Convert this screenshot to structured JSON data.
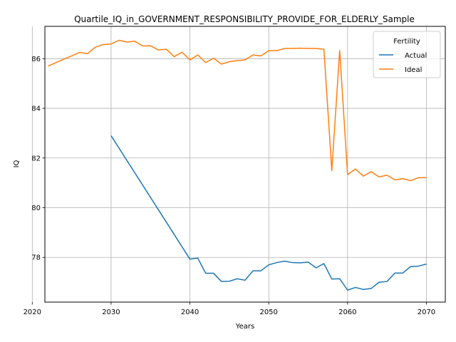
{
  "chart_data": {
    "type": "line",
    "title": "Quartile_IQ_in_GOVERNMENT_RESPONSIBILITY_PROVIDE_FOR_ELDERLY_Sample",
    "xlabel": "Years",
    "ylabel": "IQ",
    "xlim": [
      2021.6,
      2072.4
    ],
    "ylim": [
      76.2,
      87.3
    ],
    "xticks": [
      2020,
      2030,
      2040,
      2050,
      2060,
      2070
    ],
    "yticks": [
      78,
      80,
      82,
      84,
      86
    ],
    "grid": true,
    "legend": {
      "title": "Fertility",
      "placement": "top-right"
    },
    "series": [
      {
        "name": "Actual",
        "color": "#1f77b4",
        "x": [
          2030,
          2040,
          2041,
          2042,
          2043,
          2044,
          2045,
          2046,
          2047,
          2048,
          2049,
          2050,
          2051,
          2052,
          2053,
          2054,
          2055,
          2056,
          2057,
          2058,
          2059,
          2060,
          2061,
          2062,
          2063,
          2064,
          2065,
          2066,
          2067,
          2068,
          2069,
          2070
        ],
        "y": [
          82.9,
          77.93,
          77.97,
          77.36,
          77.36,
          77.03,
          77.04,
          77.14,
          77.08,
          77.46,
          77.46,
          77.7,
          77.79,
          77.85,
          77.79,
          77.78,
          77.81,
          77.58,
          77.75,
          77.13,
          77.14,
          76.68,
          76.79,
          76.71,
          76.75,
          77.0,
          77.03,
          77.37,
          77.37,
          77.63,
          77.65,
          77.73
        ]
      },
      {
        "name": "Ideal",
        "color": "#ff7f0e",
        "x": [
          2022,
          2023,
          2024,
          2025,
          2026,
          2027,
          2028,
          2029,
          2030,
          2031,
          2032,
          2033,
          2034,
          2035,
          2036,
          2037,
          2038,
          2039,
          2040,
          2041,
          2042,
          2043,
          2044,
          2045,
          2046,
          2047,
          2048,
          2049,
          2050,
          2051,
          2052,
          2053,
          2054,
          2055,
          2056,
          2057,
          2058,
          2059,
          2060,
          2061,
          2062,
          2063,
          2064,
          2065,
          2066,
          2067,
          2068,
          2069,
          2070
        ],
        "y": [
          85.7,
          85.84,
          85.98,
          86.11,
          86.25,
          86.2,
          86.46,
          86.57,
          86.59,
          86.74,
          86.67,
          86.7,
          86.51,
          86.52,
          86.35,
          86.38,
          86.08,
          86.26,
          85.95,
          86.15,
          85.84,
          86.02,
          85.78,
          85.88,
          85.92,
          85.95,
          86.15,
          86.11,
          86.32,
          86.32,
          86.41,
          86.41,
          86.42,
          86.41,
          86.41,
          86.38,
          81.49,
          86.33,
          81.33,
          81.56,
          81.27,
          81.45,
          81.24,
          81.31,
          81.12,
          81.17,
          81.09,
          81.21,
          81.21
        ]
      }
    ]
  }
}
